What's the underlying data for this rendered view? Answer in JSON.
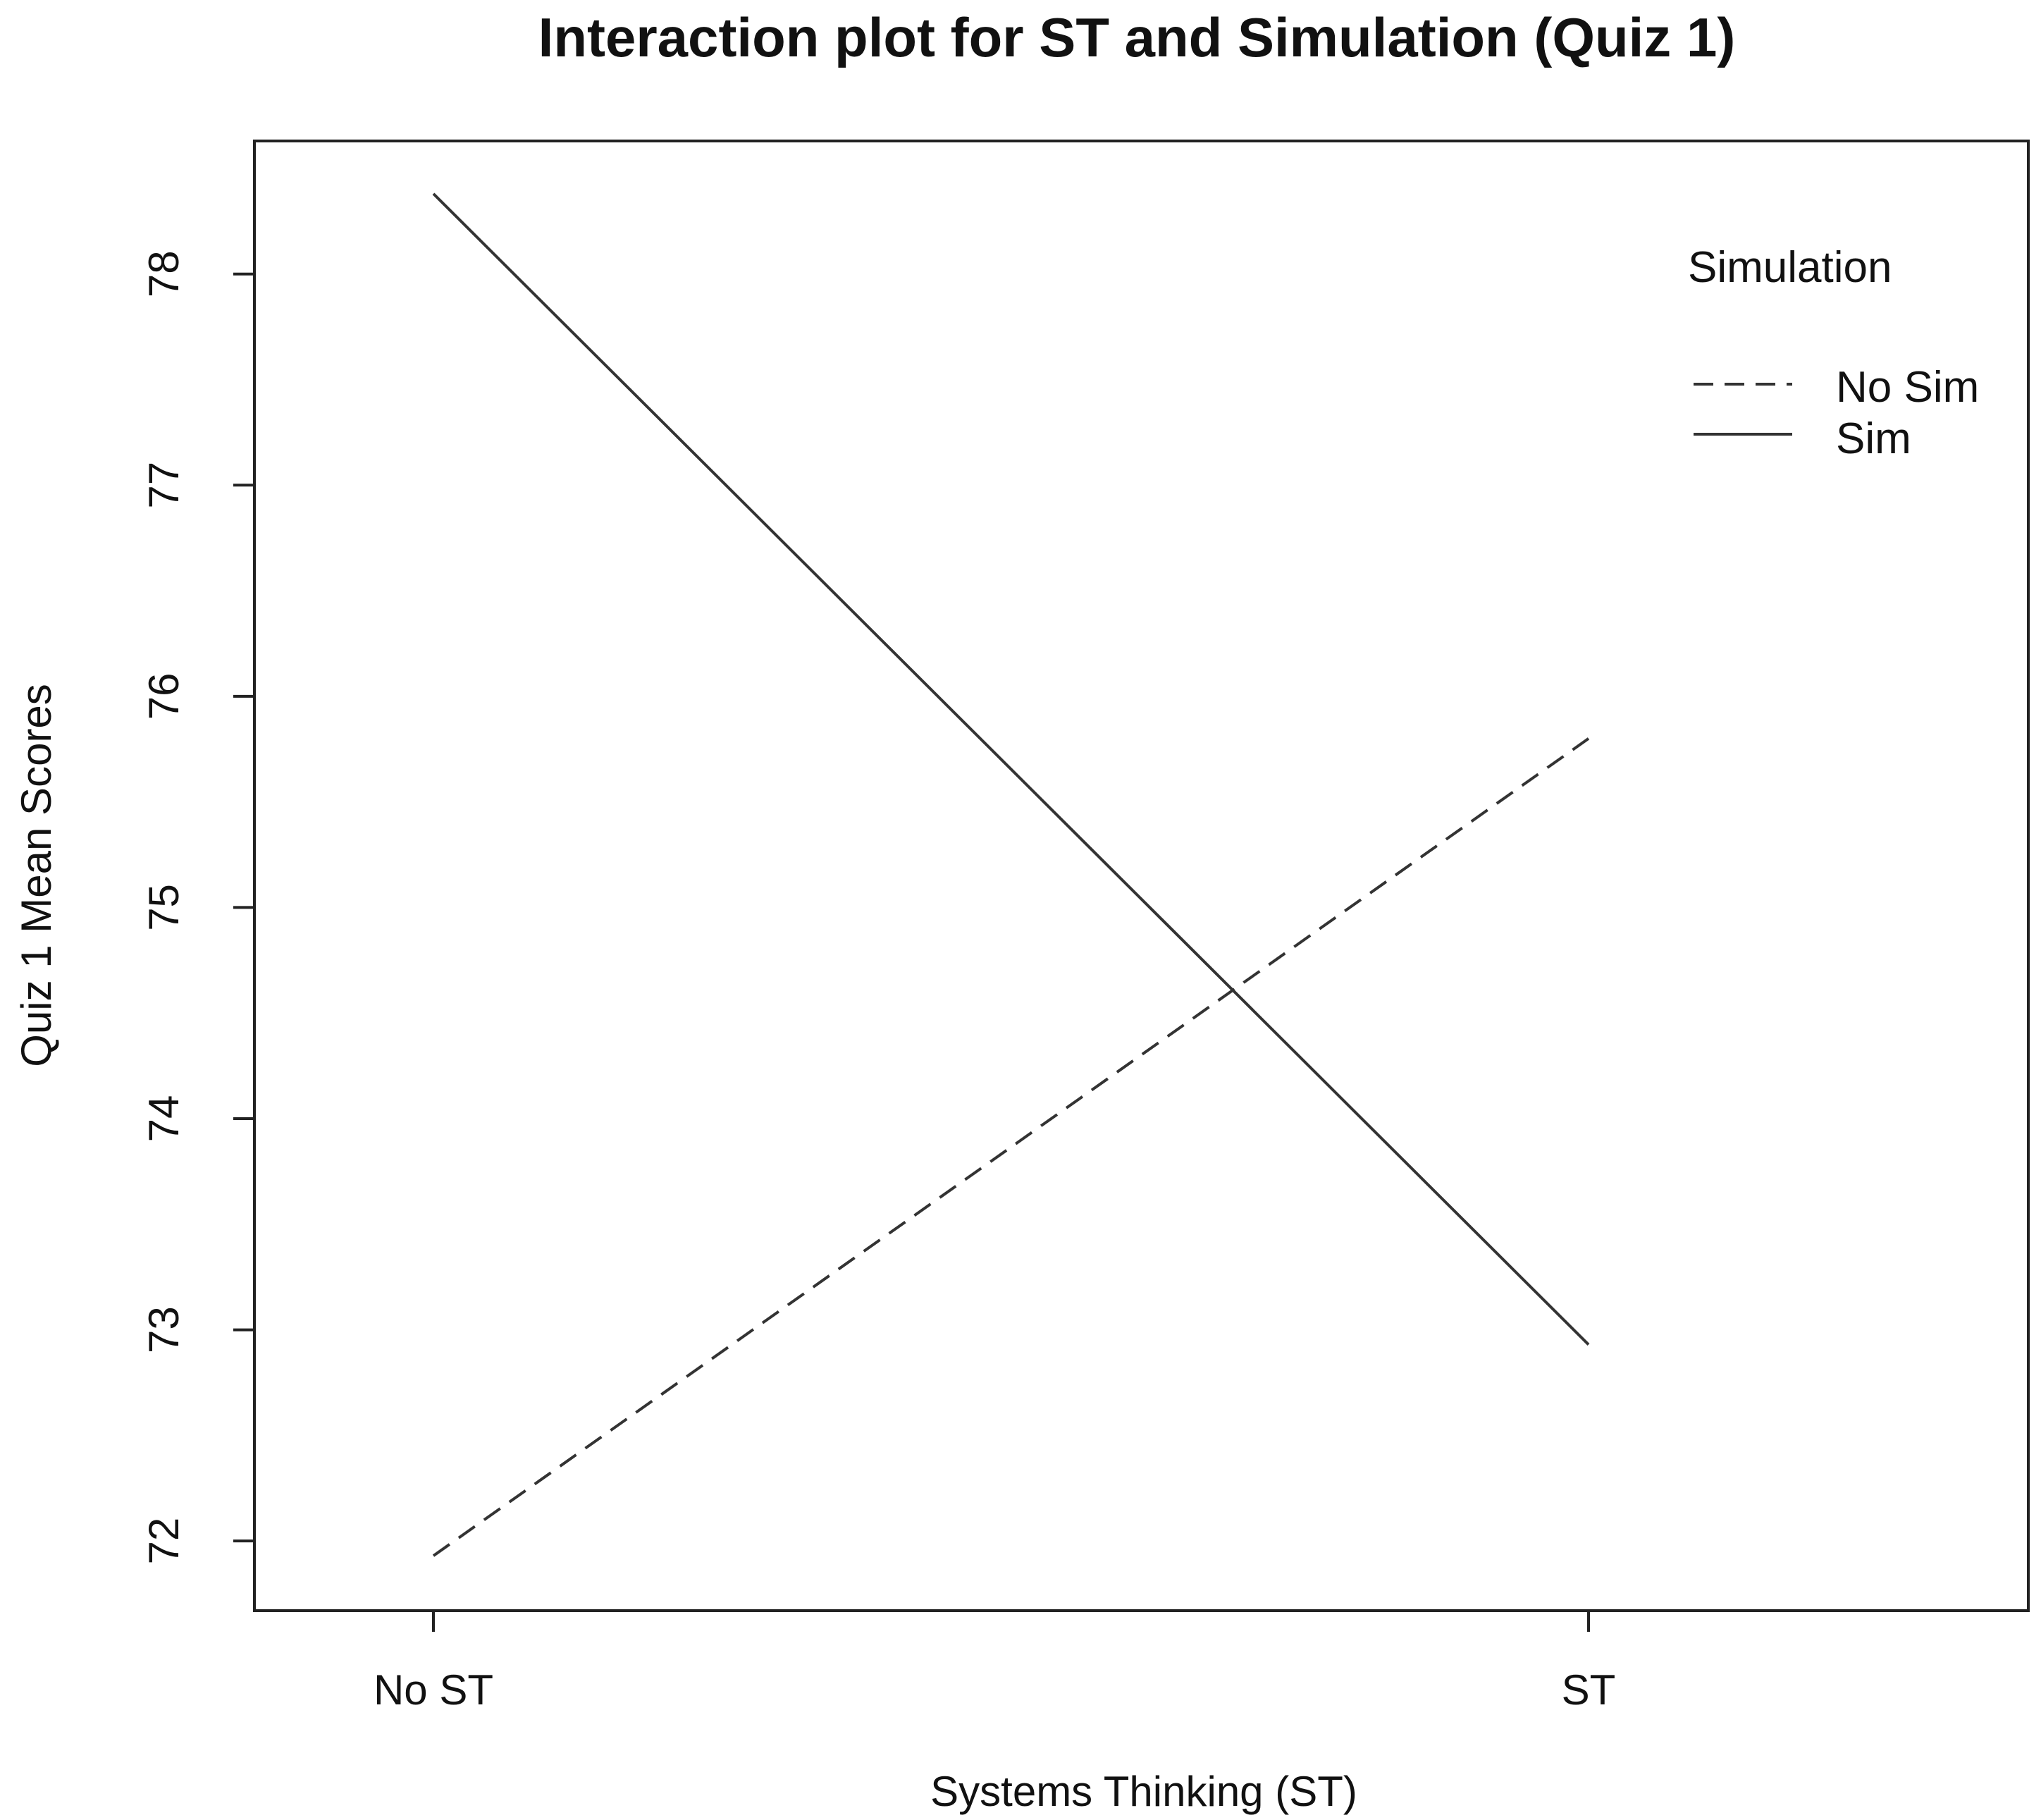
{
  "chart_data": {
    "type": "line",
    "title": "Interaction plot for ST and Simulation (Quiz 1)",
    "xlabel": "Systems Thinking (ST)",
    "ylabel": "Quiz 1 Mean Scores",
    "categories": [
      "No ST",
      "ST"
    ],
    "yticks": [
      "72",
      "73",
      "74",
      "75",
      "76",
      "77",
      "78"
    ],
    "ylim": [
      71.67,
      78.63
    ],
    "grid": false,
    "legend": {
      "title": "Simulation",
      "placement": "top-right"
    },
    "series": [
      {
        "name": "No Sim",
        "values": [
          71.93,
          75.8
        ],
        "dash": "dashed",
        "color": "#333333"
      },
      {
        "name": "Sim",
        "values": [
          78.38,
          72.93
        ],
        "dash": "solid",
        "color": "#333333"
      }
    ]
  }
}
